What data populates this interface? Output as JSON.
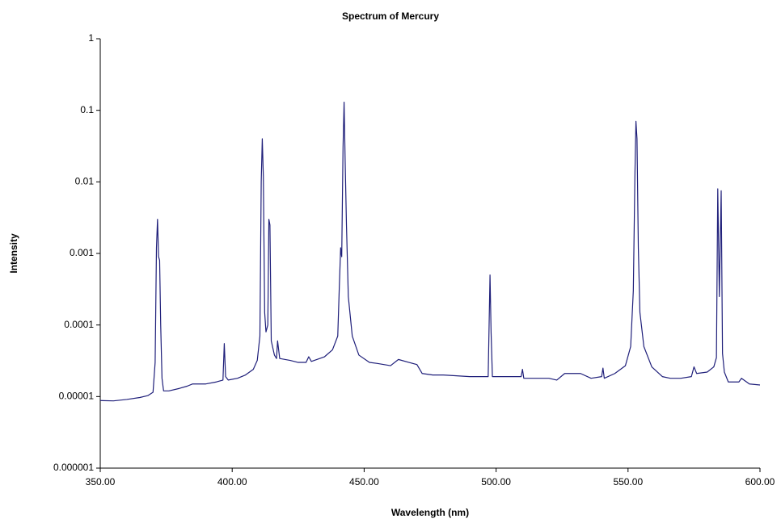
{
  "chart_data": {
    "type": "line",
    "title": "Spectrum of Mercury",
    "x_label": "Wavelength (nm)",
    "y_label": "Intensity",
    "log_y": true,
    "xlim": [
      350,
      600
    ],
    "xticks": [
      {
        "value": 350,
        "label": "350.00"
      },
      {
        "value": 400,
        "label": "400.00"
      },
      {
        "value": 450,
        "label": "450.00"
      },
      {
        "value": 500,
        "label": "500.00"
      },
      {
        "value": 550,
        "label": "550.00"
      },
      {
        "value": 600,
        "label": "600.00"
      }
    ],
    "ylim": [
      1e-06,
      1
    ],
    "yticks": [
      1,
      0.1,
      0.01,
      0.001,
      0.0001,
      1e-05,
      1e-06
    ],
    "series": [
      {
        "name": "Intensity",
        "color": "#1f1f7a",
        "x": [
          350,
          355,
          360,
          365,
          368,
          370,
          370.8,
          371.3,
          371.7,
          372.1,
          372.5,
          372.9,
          373.4,
          374,
          376,
          380,
          383,
          385,
          390,
          394,
          396.5,
          397,
          397.5,
          398.5,
          402,
          405,
          408,
          409.5,
          410.5,
          411,
          411.4,
          411.8,
          412.3,
          412.8,
          413.5,
          413.9,
          414.3,
          414.8,
          416,
          416.8,
          417.2,
          418,
          422,
          425,
          428,
          429,
          430,
          435,
          438,
          440,
          440.6,
          441.1,
          441.5,
          442,
          442.4,
          442.8,
          443.3,
          444,
          445.5,
          448,
          452,
          455,
          460,
          463,
          467,
          470,
          472,
          476,
          480,
          490,
          497,
          497.7,
          498.1,
          498.6,
          503,
          509.5,
          510,
          510.5,
          515,
          520,
          523,
          526,
          532,
          536,
          540,
          540.5,
          541,
          545,
          549,
          551,
          552,
          552.6,
          553,
          553.4,
          553.9,
          554.5,
          556,
          559,
          563,
          566,
          570,
          574,
          575,
          576,
          580,
          582.5,
          583.5,
          584,
          584.6,
          585.3,
          585.8,
          586.5,
          588,
          592,
          593,
          596,
          600
        ],
        "values": [
          8.8e-06,
          8.7e-06,
          9.1e-06,
          9.7e-06,
          1.03e-05,
          1.15e-05,
          3e-05,
          0.0012,
          0.003,
          0.0009,
          0.0008,
          0.0001,
          1.8e-05,
          1.2e-05,
          1.2e-05,
          1.3e-05,
          1.4e-05,
          1.5e-05,
          1.5e-05,
          1.6e-05,
          1.7e-05,
          5.5e-05,
          1.9e-05,
          1.7e-05,
          1.8e-05,
          2e-05,
          2.4e-05,
          3.2e-05,
          7e-05,
          0.01,
          0.04,
          0.012,
          0.00015,
          8e-05,
          0.0001,
          0.003,
          0.0025,
          6e-05,
          3.8e-05,
          3.4e-05,
          6e-05,
          3.4e-05,
          3.2e-05,
          3e-05,
          3e-05,
          3.6e-05,
          3.1e-05,
          3.6e-05,
          4.5e-05,
          7e-05,
          0.00035,
          0.0012,
          0.0009,
          0.03,
          0.13,
          0.02,
          0.0025,
          0.00025,
          7e-05,
          3.8e-05,
          3e-05,
          2.9e-05,
          2.7e-05,
          3.3e-05,
          3e-05,
          2.8e-05,
          2.1e-05,
          2e-05,
          2e-05,
          1.9e-05,
          1.9e-05,
          0.0005,
          8e-05,
          1.9e-05,
          1.9e-05,
          1.9e-05,
          2.4e-05,
          1.8e-05,
          1.8e-05,
          1.8e-05,
          1.7e-05,
          2.1e-05,
          2.1e-05,
          1.8e-05,
          1.9e-05,
          2.5e-05,
          1.8e-05,
          2.1e-05,
          2.7e-05,
          5e-05,
          0.0003,
          0.012,
          0.07,
          0.04,
          0.0012,
          0.00015,
          5e-05,
          2.6e-05,
          1.9e-05,
          1.8e-05,
          1.8e-05,
          1.9e-05,
          2.6e-05,
          2.1e-05,
          2.2e-05,
          2.6e-05,
          3.5e-05,
          0.008,
          0.00025,
          0.0075,
          4e-05,
          2.2e-05,
          1.6e-05,
          1.6e-05,
          1.8e-05,
          1.5e-05,
          1.45e-05
        ]
      }
    ]
  }
}
